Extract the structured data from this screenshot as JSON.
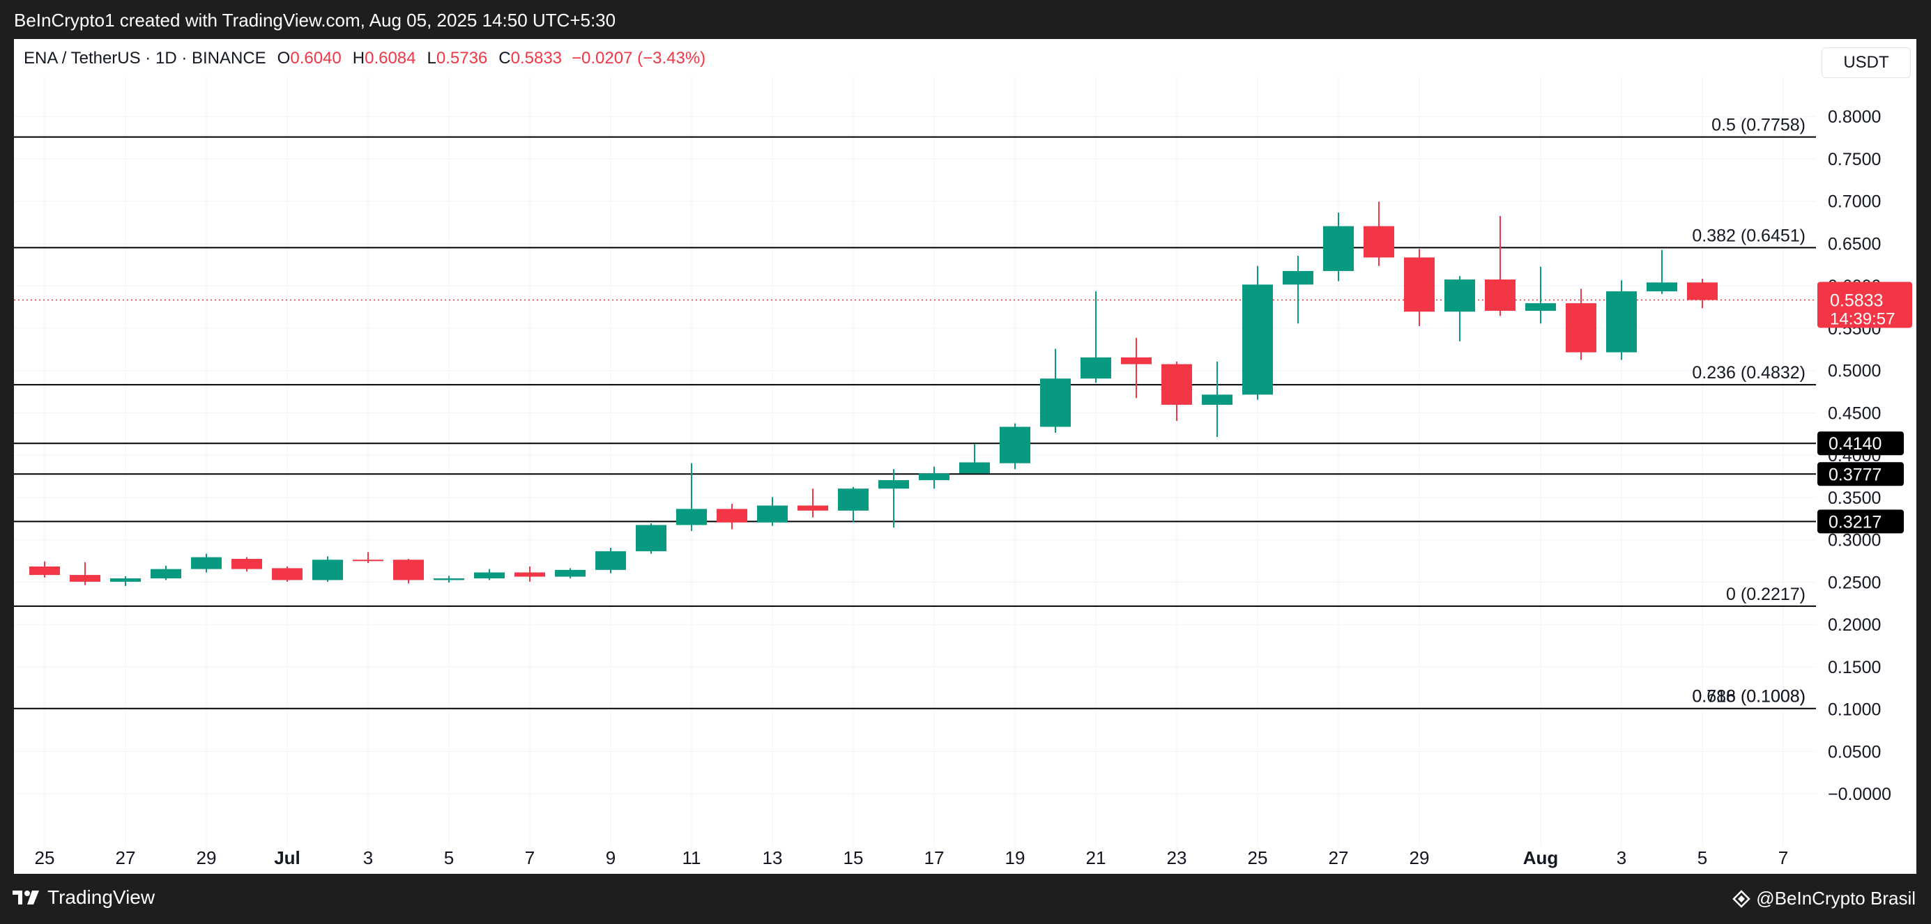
{
  "header": {
    "attribution": "BeInCrypto1 created with TradingView.com, Aug 05, 2025 14:50 UTC+5:30"
  },
  "legend": {
    "symbol": "ENA / TetherUS · 1D · BINANCE",
    "open_label": "O",
    "open": "0.6040",
    "high_label": "H",
    "high": "0.6084",
    "low_label": "L",
    "low": "0.5736",
    "close_label": "C",
    "close": "0.5833",
    "change": "−0.0207 (−3.43%)"
  },
  "currency_button": "USDT",
  "footer": {
    "logo_text": "TradingView",
    "brand_text": "@BeInCrypto Brasil"
  },
  "colors": {
    "up": "#089981",
    "down": "#f23645",
    "grid": "#f0f3fa",
    "level_line": "#000000",
    "last_price_bg": "#f23645",
    "level_label_bg": "#000000"
  },
  "chart_data": {
    "type": "candlestick",
    "y_axis": {
      "min": -0.05,
      "max": 0.84,
      "ticks": [
        "0.8000",
        "0.7500",
        "0.7000",
        "0.6500",
        "0.6000",
        "0.5500",
        "0.5000",
        "0.4500",
        "0.4000",
        "0.3500",
        "0.3000",
        "0.2500",
        "0.2000",
        "0.1500",
        "0.1000",
        "0.0500",
        "−0.0000"
      ],
      "tick_values": [
        0.8,
        0.75,
        0.7,
        0.65,
        0.6,
        0.55,
        0.5,
        0.45,
        0.4,
        0.35,
        0.3,
        0.25,
        0.2,
        0.15,
        0.1,
        0.05,
        0.0
      ]
    },
    "x_axis": {
      "ticks": [
        {
          "label": "25",
          "date": "2025-06-25",
          "bold": false
        },
        {
          "label": "27",
          "date": "2025-06-27",
          "bold": false
        },
        {
          "label": "29",
          "date": "2025-06-29",
          "bold": false
        },
        {
          "label": "Jul",
          "date": "2025-07-01",
          "bold": true
        },
        {
          "label": "3",
          "date": "2025-07-03",
          "bold": false
        },
        {
          "label": "5",
          "date": "2025-07-05",
          "bold": false
        },
        {
          "label": "7",
          "date": "2025-07-07",
          "bold": false
        },
        {
          "label": "9",
          "date": "2025-07-09",
          "bold": false
        },
        {
          "label": "11",
          "date": "2025-07-11",
          "bold": false
        },
        {
          "label": "13",
          "date": "2025-07-13",
          "bold": false
        },
        {
          "label": "15",
          "date": "2025-07-15",
          "bold": false
        },
        {
          "label": "17",
          "date": "2025-07-17",
          "bold": false
        },
        {
          "label": "19",
          "date": "2025-07-19",
          "bold": false
        },
        {
          "label": "21",
          "date": "2025-07-21",
          "bold": false
        },
        {
          "label": "23",
          "date": "2025-07-23",
          "bold": false
        },
        {
          "label": "25",
          "date": "2025-07-25",
          "bold": false
        },
        {
          "label": "27",
          "date": "2025-07-27",
          "bold": false
        },
        {
          "label": "29",
          "date": "2025-07-29",
          "bold": false
        },
        {
          "label": "Aug",
          "date": "2025-08-01",
          "bold": true
        },
        {
          "label": "3",
          "date": "2025-08-03",
          "bold": false
        },
        {
          "label": "5",
          "date": "2025-08-05",
          "bold": false
        },
        {
          "label": "7",
          "date": "2025-08-07",
          "bold": false
        }
      ]
    },
    "candles": [
      {
        "date": "2025-06-25",
        "o": 0.2685,
        "h": 0.2745,
        "l": 0.2555,
        "c": 0.2585
      },
      {
        "date": "2025-06-26",
        "o": 0.2585,
        "h": 0.2735,
        "l": 0.2465,
        "c": 0.2505
      },
      {
        "date": "2025-06-27",
        "o": 0.2505,
        "h": 0.257,
        "l": 0.2455,
        "c": 0.2545
      },
      {
        "date": "2025-06-28",
        "o": 0.2545,
        "h": 0.2695,
        "l": 0.2525,
        "c": 0.2655
      },
      {
        "date": "2025-06-29",
        "o": 0.2655,
        "h": 0.2835,
        "l": 0.2615,
        "c": 0.2795
      },
      {
        "date": "2025-06-30",
        "o": 0.2775,
        "h": 0.2795,
        "l": 0.2625,
        "c": 0.2655
      },
      {
        "date": "2025-07-01",
        "o": 0.2665,
        "h": 0.2685,
        "l": 0.2505,
        "c": 0.2525
      },
      {
        "date": "2025-07-02",
        "o": 0.2525,
        "h": 0.2805,
        "l": 0.2505,
        "c": 0.2765
      },
      {
        "date": "2025-07-03",
        "o": 0.2765,
        "h": 0.2855,
        "l": 0.2725,
        "c": 0.2755
      },
      {
        "date": "2025-07-04",
        "o": 0.2765,
        "h": 0.2775,
        "l": 0.2485,
        "c": 0.2525
      },
      {
        "date": "2025-07-05",
        "o": 0.2525,
        "h": 0.2575,
        "l": 0.2495,
        "c": 0.2545
      },
      {
        "date": "2025-07-06",
        "o": 0.2545,
        "h": 0.2655,
        "l": 0.2525,
        "c": 0.2615
      },
      {
        "date": "2025-07-07",
        "o": 0.2615,
        "h": 0.2685,
        "l": 0.2505,
        "c": 0.2565
      },
      {
        "date": "2025-07-08",
        "o": 0.2565,
        "h": 0.2665,
        "l": 0.2545,
        "c": 0.2645
      },
      {
        "date": "2025-07-09",
        "o": 0.2645,
        "h": 0.2905,
        "l": 0.2605,
        "c": 0.2865
      },
      {
        "date": "2025-07-10",
        "o": 0.2865,
        "h": 0.3195,
        "l": 0.2835,
        "c": 0.3175
      },
      {
        "date": "2025-07-11",
        "o": 0.3175,
        "h": 0.3905,
        "l": 0.3105,
        "c": 0.3365
      },
      {
        "date": "2025-07-12",
        "o": 0.3365,
        "h": 0.3425,
        "l": 0.3125,
        "c": 0.3205
      },
      {
        "date": "2025-07-13",
        "o": 0.3205,
        "h": 0.3505,
        "l": 0.3165,
        "c": 0.3405
      },
      {
        "date": "2025-07-14",
        "o": 0.3405,
        "h": 0.3605,
        "l": 0.3265,
        "c": 0.3345
      },
      {
        "date": "2025-07-15",
        "o": 0.3345,
        "h": 0.3625,
        "l": 0.3205,
        "c": 0.3605
      },
      {
        "date": "2025-07-16",
        "o": 0.3605,
        "h": 0.3835,
        "l": 0.3145,
        "c": 0.3705
      },
      {
        "date": "2025-07-17",
        "o": 0.3705,
        "h": 0.3865,
        "l": 0.3605,
        "c": 0.3785
      },
      {
        "date": "2025-07-18",
        "o": 0.3785,
        "h": 0.4135,
        "l": 0.3785,
        "c": 0.3915
      },
      {
        "date": "2025-07-19",
        "o": 0.3905,
        "h": 0.4375,
        "l": 0.3835,
        "c": 0.4335
      },
      {
        "date": "2025-07-20",
        "o": 0.4335,
        "h": 0.5255,
        "l": 0.4265,
        "c": 0.4905
      },
      {
        "date": "2025-07-21",
        "o": 0.4905,
        "h": 0.5935,
        "l": 0.4855,
        "c": 0.5155
      },
      {
        "date": "2025-07-22",
        "o": 0.5155,
        "h": 0.5385,
        "l": 0.4675,
        "c": 0.5075
      },
      {
        "date": "2025-07-23",
        "o": 0.5075,
        "h": 0.5105,
        "l": 0.4405,
        "c": 0.4595
      },
      {
        "date": "2025-07-24",
        "o": 0.4595,
        "h": 0.5105,
        "l": 0.4215,
        "c": 0.4715
      },
      {
        "date": "2025-07-25",
        "o": 0.4715,
        "h": 0.6235,
        "l": 0.4655,
        "c": 0.6015
      },
      {
        "date": "2025-07-26",
        "o": 0.6015,
        "h": 0.6355,
        "l": 0.5555,
        "c": 0.6175
      },
      {
        "date": "2025-07-27",
        "o": 0.6175,
        "h": 0.6865,
        "l": 0.6055,
        "c": 0.6705
      },
      {
        "date": "2025-07-28",
        "o": 0.6705,
        "h": 0.6995,
        "l": 0.6235,
        "c": 0.6335
      },
      {
        "date": "2025-07-29",
        "o": 0.6335,
        "h": 0.6435,
        "l": 0.5525,
        "c": 0.5695
      },
      {
        "date": "2025-07-30",
        "o": 0.5695,
        "h": 0.6115,
        "l": 0.5345,
        "c": 0.6075
      },
      {
        "date": "2025-07-31",
        "o": 0.6075,
        "h": 0.6825,
        "l": 0.5645,
        "c": 0.5705
      },
      {
        "date": "2025-08-01",
        "o": 0.5705,
        "h": 0.6225,
        "l": 0.5555,
        "c": 0.5795
      },
      {
        "date": "2025-08-02",
        "o": 0.5795,
        "h": 0.5965,
        "l": 0.5125,
        "c": 0.5215
      },
      {
        "date": "2025-08-03",
        "o": 0.5215,
        "h": 0.6065,
        "l": 0.5125,
        "c": 0.5935
      },
      {
        "date": "2025-08-04",
        "o": 0.5935,
        "h": 0.6425,
        "l": 0.5905,
        "c": 0.604
      },
      {
        "date": "2025-08-05",
        "o": 0.604,
        "h": 0.6084,
        "l": 0.5736,
        "c": 0.5833
      }
    ],
    "fib_levels": [
      {
        "value": 0.7758,
        "label": "0.5 (0.7758)"
      },
      {
        "value": 0.6451,
        "label": "0.382 (0.6451)"
      },
      {
        "value": 0.4832,
        "label": "0.236 (0.4832)"
      },
      {
        "value": 0.2217,
        "label": "0 (0.2217)"
      },
      {
        "value": 0.1008,
        "label": "0.618 (0.1008)"
      },
      {
        "value": 0.1008,
        "label": "0.786 (0.1008)"
      }
    ],
    "support_levels": [
      {
        "value": 0.414,
        "label": "0.4140"
      },
      {
        "value": 0.3777,
        "label": "0.3777"
      },
      {
        "value": 0.3217,
        "label": "0.3217"
      }
    ],
    "last_price": {
      "value": 0.5833,
      "label": "0.5833",
      "countdown": "14:39:57"
    },
    "grid": true
  }
}
